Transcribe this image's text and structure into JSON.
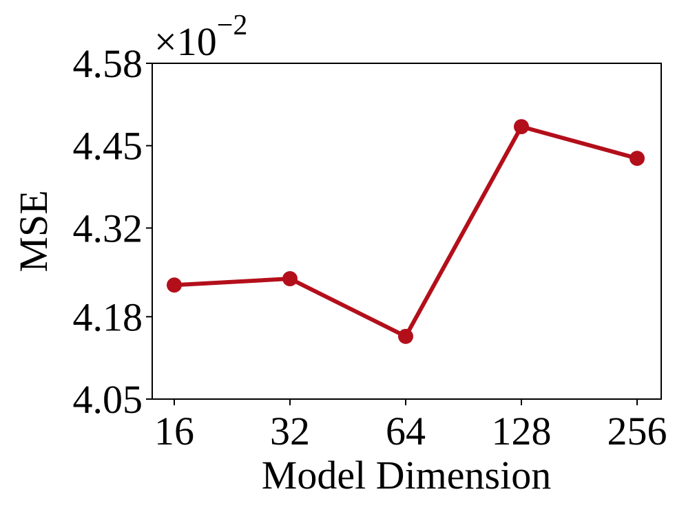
{
  "chart_data": {
    "type": "line",
    "x_label": "Model Dimension",
    "y_label": "MSE",
    "y_offset_label": {
      "base": "×10",
      "exponent": "−2"
    },
    "categories": [
      "16",
      "32",
      "64",
      "128",
      "256"
    ],
    "series": [
      {
        "name": "MSE",
        "color": "#b30f1b",
        "values": [
          4.23,
          4.24,
          4.149,
          4.48,
          4.43
        ]
      }
    ],
    "ylim": [
      4.05,
      4.58
    ],
    "yticks": [
      4.05,
      4.18,
      4.32,
      4.45,
      4.58
    ],
    "grid": false
  }
}
